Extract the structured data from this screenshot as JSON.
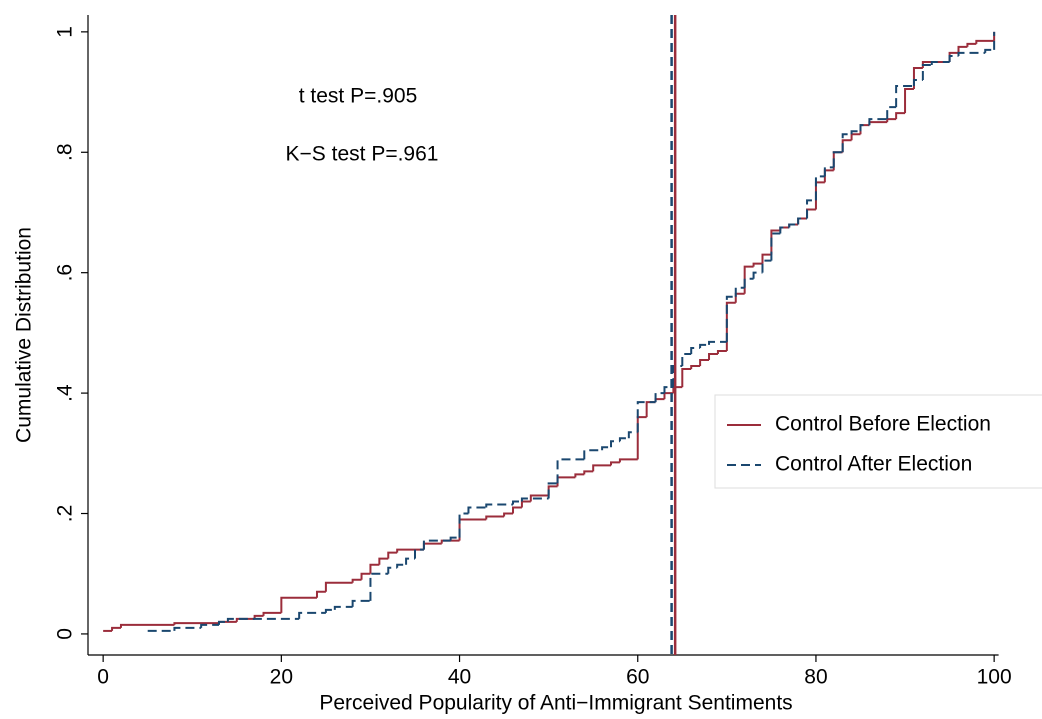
{
  "chart_data": {
    "type": "step",
    "x_label": "Perceived Popularity of Anti−Immigrant Sentiments",
    "y_label": "Cumulative Distribution",
    "annotations": [
      "t test P=.905",
      "K−S test P=.961"
    ],
    "xlim": [
      -1.7,
      100.5
    ],
    "ylim": [
      -0.035,
      1.028
    ],
    "xticks": [
      0,
      20,
      40,
      60,
      80,
      100
    ],
    "yticks": [
      0,
      {
        "value": 0.2,
        "label": ".2"
      },
      {
        "value": 0.4,
        "label": ".4"
      },
      {
        "value": 0.6,
        "label": ".6"
      },
      {
        "value": 0.8,
        "label": ".8"
      },
      1
    ],
    "legend": "right",
    "series": [
      {
        "name": "Control Before Election",
        "color": "#9b2d3b",
        "dash": false,
        "x": [
          0,
          1,
          2,
          8,
          13,
          15,
          17,
          18,
          20,
          24,
          25,
          28,
          29,
          30,
          31,
          32,
          33,
          36,
          38,
          40,
          43,
          45,
          46,
          47,
          48,
          50,
          51,
          53,
          54,
          55,
          57,
          58,
          60,
          61,
          62,
          63,
          64,
          65,
          66,
          67,
          68,
          69,
          70,
          71,
          72,
          73,
          74,
          75,
          76,
          77,
          78,
          79,
          80,
          81,
          82,
          83,
          84,
          85,
          86,
          88,
          89,
          90,
          91,
          92,
          95,
          96,
          97,
          98,
          100
        ],
        "values": [
          0.005,
          0.01,
          0.015,
          0.018,
          0.02,
          0.025,
          0.03,
          0.035,
          0.06,
          0.07,
          0.085,
          0.09,
          0.1,
          0.115,
          0.125,
          0.135,
          0.14,
          0.15,
          0.155,
          0.19,
          0.195,
          0.2,
          0.21,
          0.22,
          0.23,
          0.245,
          0.26,
          0.265,
          0.27,
          0.28,
          0.285,
          0.29,
          0.36,
          0.385,
          0.39,
          0.4,
          0.41,
          0.44,
          0.445,
          0.455,
          0.465,
          0.47,
          0.55,
          0.565,
          0.61,
          0.615,
          0.63,
          0.67,
          0.675,
          0.68,
          0.69,
          0.705,
          0.75,
          0.77,
          0.8,
          0.82,
          0.83,
          0.845,
          0.85,
          0.855,
          0.865,
          0.905,
          0.94,
          0.95,
          0.965,
          0.975,
          0.98,
          0.985,
          1
        ]
      },
      {
        "name": "Control After Election",
        "color": "#1a476f",
        "dash": true,
        "x": [
          5,
          8,
          11,
          13,
          14,
          22,
          25,
          26,
          28,
          30,
          32,
          33,
          34,
          35,
          36,
          39,
          40,
          41,
          43,
          46,
          47,
          50,
          51,
          54,
          56,
          57,
          58,
          59,
          60,
          62,
          63,
          64,
          65,
          66,
          67,
          68,
          70,
          71,
          72,
          73,
          74,
          75,
          76,
          77,
          78,
          79,
          80,
          81,
          82,
          83,
          84,
          85,
          86,
          88,
          89,
          91,
          92,
          93,
          95,
          96,
          99,
          100
        ],
        "values": [
          0.005,
          0.01,
          0.015,
          0.02,
          0.025,
          0.035,
          0.04,
          0.045,
          0.055,
          0.1,
          0.11,
          0.115,
          0.125,
          0.14,
          0.155,
          0.16,
          0.2,
          0.21,
          0.215,
          0.22,
          0.225,
          0.25,
          0.29,
          0.305,
          0.31,
          0.32,
          0.325,
          0.335,
          0.385,
          0.4,
          0.41,
          0.445,
          0.465,
          0.475,
          0.48,
          0.485,
          0.56,
          0.575,
          0.59,
          0.6,
          0.62,
          0.665,
          0.675,
          0.68,
          0.69,
          0.72,
          0.76,
          0.775,
          0.8,
          0.83,
          0.835,
          0.845,
          0.855,
          0.875,
          0.91,
          0.92,
          0.945,
          0.95,
          0.96,
          0.965,
          0.97,
          1
        ]
      }
    ],
    "reference_lines": [
      {
        "x": 64.2,
        "color": "#9b2d3b",
        "dash": false
      },
      {
        "x": 63.8,
        "color": "#1a476f",
        "dash": true
      }
    ]
  }
}
